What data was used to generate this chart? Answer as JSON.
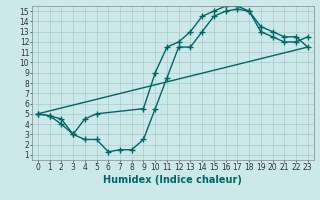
{
  "bg_color": "#cce8e8",
  "grid_color": "#aacccc",
  "line_color": "#006666",
  "line_width": 1.0,
  "marker": "+",
  "marker_size": 4,
  "marker_lw": 1.0,
  "xlabel": "Humidex (Indice chaleur)",
  "xlabel_fontsize": 7,
  "xlim": [
    -0.5,
    23.5
  ],
  "ylim": [
    0.5,
    15.5
  ],
  "xticks": [
    0,
    1,
    2,
    3,
    4,
    5,
    6,
    7,
    8,
    9,
    10,
    11,
    12,
    13,
    14,
    15,
    16,
    17,
    18,
    19,
    20,
    21,
    22,
    23
  ],
  "yticks": [
    1,
    2,
    3,
    4,
    5,
    6,
    7,
    8,
    9,
    10,
    11,
    12,
    13,
    14,
    15
  ],
  "tick_fontsize": 5.5,
  "line1_x": [
    0,
    1,
    2,
    3,
    4,
    5,
    6,
    7,
    8,
    9,
    10,
    11,
    12,
    13,
    14,
    15,
    16,
    17,
    18,
    19,
    20,
    21,
    22,
    23
  ],
  "line1_y": [
    5,
    4.8,
    4.5,
    3.0,
    2.5,
    2.5,
    1.3,
    1.5,
    1.5,
    2.5,
    5.5,
    8.5,
    11.5,
    11.5,
    13.0,
    14.5,
    15.0,
    15.2,
    15.0,
    13.0,
    12.5,
    12.0,
    12.0,
    12.5
  ],
  "line2_x": [
    0,
    1,
    2,
    3,
    4,
    5,
    9,
    10,
    11,
    12,
    13,
    14,
    15,
    16,
    17,
    18,
    19,
    20,
    21,
    22,
    23
  ],
  "line2_y": [
    5,
    4.8,
    4.0,
    3.0,
    4.5,
    5.0,
    5.5,
    9.0,
    11.5,
    12.0,
    13.0,
    14.5,
    15.0,
    15.5,
    15.5,
    15.0,
    13.5,
    13.0,
    12.5,
    12.5,
    11.5
  ],
  "line3_x": [
    0,
    23
  ],
  "line3_y": [
    5,
    11.5
  ]
}
